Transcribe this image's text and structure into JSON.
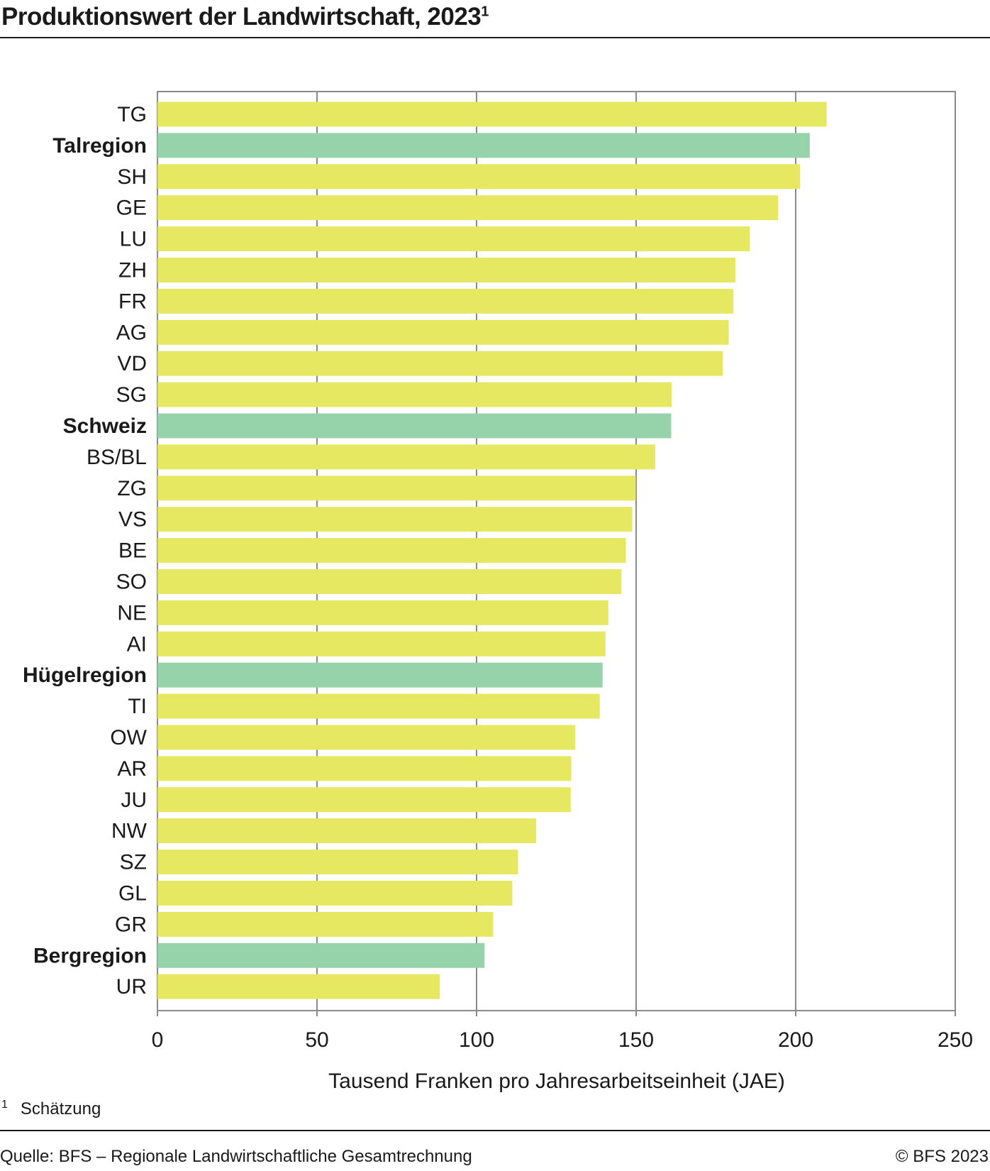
{
  "header": {
    "title": "Produktionswert der Landwirtschaft, 2023",
    "title_note_mark": "1"
  },
  "footer": {
    "footnote_mark": "1",
    "footnote_text": "Schätzung",
    "source": "Quelle: BFS – Regionale Landwirtschaftliche Gesamtrechnung",
    "copyright": "© BFS 2023"
  },
  "colors": {
    "canton": "#e6e862",
    "region": "#96d3aa",
    "grid": "#8a8a8a",
    "text": "#1a1a1a"
  },
  "chart_data": {
    "type": "bar",
    "orientation": "horizontal",
    "title": "Produktionswert der Landwirtschaft, 2023",
    "xlabel": "Tausend Franken pro Jahresarbeitseinheit (JAE)",
    "ylabel": "",
    "xlim": [
      0,
      250
    ],
    "xticks": [
      0,
      50,
      100,
      150,
      200,
      250
    ],
    "grid": "vertical",
    "categories": [
      "TG",
      "Talregion",
      "SH",
      "GE",
      "LU",
      "ZH",
      "FR",
      "AG",
      "VD",
      "SG",
      "Schweiz",
      "BS/BL",
      "ZG",
      "VS",
      "BE",
      "SO",
      "NE",
      "AI",
      "Hügelregion",
      "TI",
      "OW",
      "AR",
      "JU",
      "NW",
      "SZ",
      "GL",
      "GR",
      "Bergregion",
      "UR"
    ],
    "values": [
      209.7,
      204.4,
      201.4,
      194.5,
      185.6,
      181.1,
      180.5,
      179.0,
      177.2,
      161.1,
      161.0,
      156.0,
      149.9,
      148.8,
      146.8,
      145.4,
      141.3,
      140.4,
      139.5,
      138.6,
      130.9,
      129.7,
      129.5,
      118.7,
      113.0,
      111.2,
      105.2,
      102.5,
      88.5
    ],
    "highlight": [
      "Talregion",
      "Schweiz",
      "Hügelregion",
      "Bergregion"
    ]
  }
}
